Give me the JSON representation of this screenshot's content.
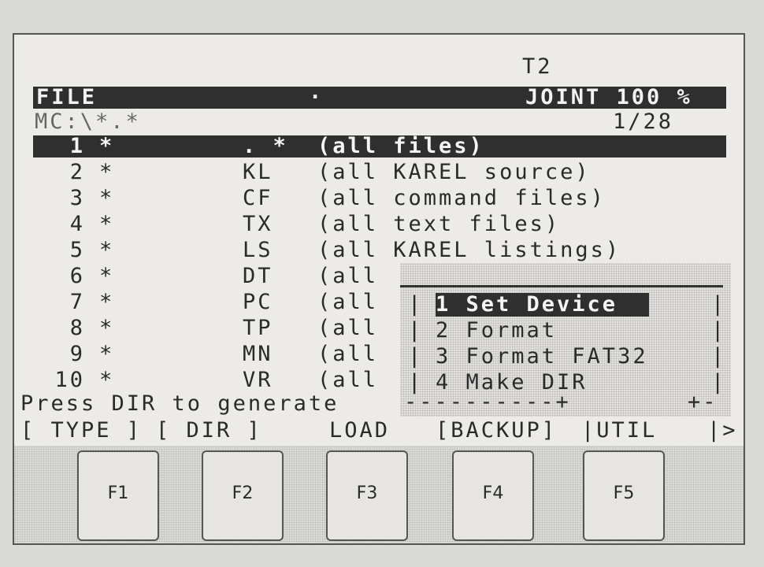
{
  "header": {
    "mode": "T2",
    "title": "FILE",
    "dot": "·",
    "status": "JOINT 100 %"
  },
  "path": {
    "value": "MC:\\*.*",
    "page": "1/28"
  },
  "files": [
    {
      "num": "1",
      "name": "*",
      "type": ". *",
      "desc": "(all files)"
    },
    {
      "num": "2",
      "name": "*",
      "type": "KL",
      "desc": "(all KAREL source)"
    },
    {
      "num": "3",
      "name": "*",
      "type": "CF",
      "desc": "(all command files)"
    },
    {
      "num": "4",
      "name": "*",
      "type": "TX",
      "desc": "(all text files)"
    },
    {
      "num": "5",
      "name": "*",
      "type": "LS",
      "desc": "(all KAREL listings)"
    },
    {
      "num": "6",
      "name": "*",
      "type": "DT",
      "desc": "(all"
    },
    {
      "num": "7",
      "name": "*",
      "type": "PC",
      "desc": "(all"
    },
    {
      "num": "8",
      "name": "*",
      "type": "TP",
      "desc": "(all"
    },
    {
      "num": "9",
      "name": "*",
      "type": "MN",
      "desc": "(all"
    },
    {
      "num": "10",
      "name": "*",
      "type": "VR",
      "desc": "(all"
    }
  ],
  "popup": {
    "items": [
      "1 Set Device",
      "2 Format",
      "3 Format FAT32",
      "4 Make DIR"
    ],
    "border_bottom": "----------+",
    "corner": "+-"
  },
  "message": "Press DIR to generate",
  "softkeys": {
    "f1": "[ TYPE ]",
    "f2": "[ DIR ]",
    "f3": "LOAD",
    "f4": "[BACKUP]",
    "f5": "|UTIL",
    "next": "|>"
  },
  "keys": [
    "F1",
    "F2",
    "F3",
    "F4",
    "F5"
  ]
}
